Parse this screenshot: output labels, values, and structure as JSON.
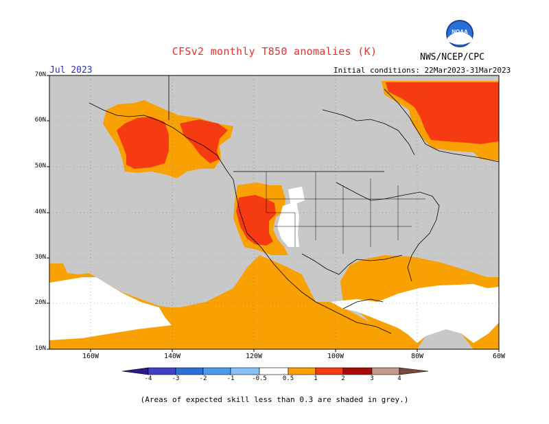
{
  "title": "CFSv2 monthly T850 anomalies (K)",
  "org": "NWS/NCEP/CPC",
  "logo_text": "NOAA",
  "month": "Jul 2023",
  "initial_conditions": "Initial conditions: 22Mar2023-31Mar2023",
  "lat_labels": [
    "70N",
    "60N",
    "50N",
    "40N",
    "30N",
    "20N",
    "10N"
  ],
  "lon_labels": [
    "160W",
    "140W",
    "120W",
    "100W",
    "80W",
    "60W"
  ],
  "colorbar": {
    "labels": [
      "-4",
      "-3",
      "-2",
      "-1",
      "-0.5",
      "0.5",
      "1",
      "2",
      "3",
      "4"
    ],
    "colors": {
      "lt_m4": "#2a1a8c",
      "m4_m3": "#4040c8",
      "m3_m2": "#2f6fd8",
      "m2_m1": "#4a9af0",
      "m1_m05": "#86c0f8",
      "m05_05": "#ffffff",
      "p05_1": "#f9a003",
      "p1_2": "#f63a12",
      "p2_3": "#a80a0a",
      "p3_4": "#c79a8e",
      "gt_4": "#7a4a3a"
    }
  },
  "map_colors": {
    "grey": "#c8c8c8",
    "white": "#ffffff",
    "orange": "#f9a003",
    "red_orange": "#f63a12"
  },
  "footnote": "(Areas of expected skill less than 0.3 are shaded in grey.)"
}
